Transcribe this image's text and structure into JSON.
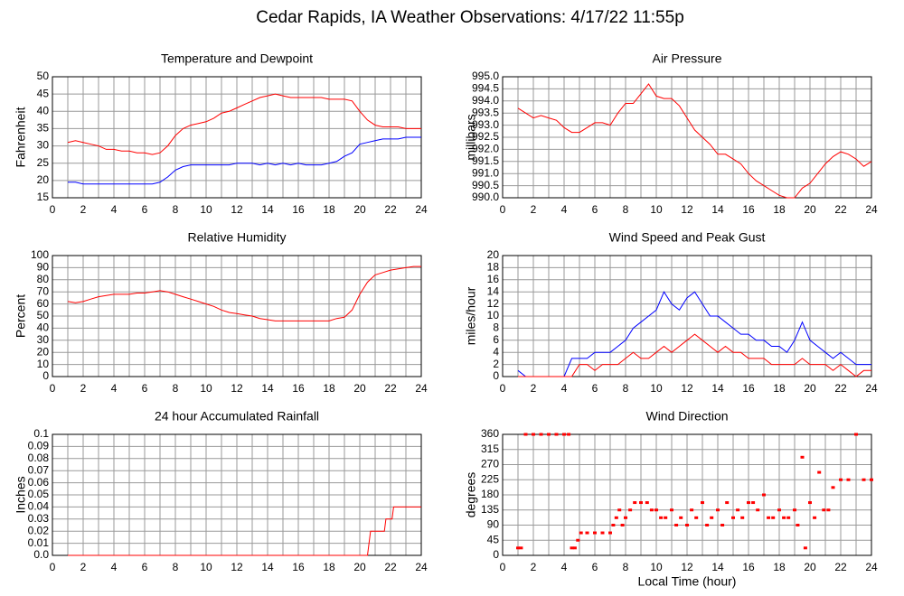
{
  "title": "Cedar Rapids, IA Weather Observations: 4/17/22 11:55p",
  "chart_data": [
    {
      "type": "line",
      "title": "Temperature and Dewpoint",
      "ylabel": "Fahrenheit",
      "xlim": [
        0,
        24
      ],
      "xticks": [
        0,
        2,
        4,
        6,
        8,
        10,
        12,
        14,
        16,
        18,
        20,
        22,
        24
      ],
      "ylim": [
        15,
        50
      ],
      "yticks": [
        15,
        20,
        25,
        30,
        35,
        40,
        45,
        50
      ],
      "grid": true,
      "x": [
        1,
        1.5,
        2,
        2.5,
        3,
        3.5,
        4,
        4.5,
        5,
        5.5,
        6,
        6.5,
        7,
        7.5,
        8,
        8.5,
        9,
        9.5,
        10,
        10.5,
        11,
        11.5,
        12,
        12.5,
        13,
        13.5,
        14,
        14.5,
        15,
        15.5,
        16,
        16.5,
        17,
        17.5,
        18,
        18.5,
        19,
        19.5,
        20,
        20.5,
        21,
        21.5,
        22,
        22.5,
        23,
        23.5,
        24
      ],
      "series": [
        {
          "color": "#ff0000",
          "values": [
            31,
            31.5,
            31,
            30.5,
            30,
            29,
            29,
            28.5,
            28.5,
            28,
            28,
            27.5,
            28,
            30,
            33,
            35,
            36,
            36.5,
            37,
            38,
            39.5,
            40,
            41,
            42,
            43,
            44,
            44.5,
            45,
            44.5,
            44,
            44,
            44,
            44,
            44,
            43.5,
            43.5,
            43.5,
            43,
            40,
            37.5,
            36,
            35.5,
            35.5,
            35.5,
            35,
            35,
            35
          ]
        },
        {
          "color": "#0000ff",
          "values": [
            19.5,
            19.5,
            19,
            19,
            19,
            19,
            19,
            19,
            19,
            19,
            19,
            19,
            19.5,
            21,
            23,
            24,
            24.5,
            24.5,
            24.5,
            24.5,
            24.5,
            24.5,
            25,
            25,
            25,
            24.5,
            25,
            24.5,
            25,
            24.5,
            25,
            24.5,
            24.5,
            24.5,
            25,
            25.5,
            27,
            28,
            30.5,
            31,
            31.5,
            32,
            32,
            32,
            32.5,
            32.5,
            32.5
          ]
        }
      ]
    },
    {
      "type": "line",
      "title": "Air Pressure",
      "ylabel": "millibars",
      "xlim": [
        0,
        24
      ],
      "xticks": [
        0,
        2,
        4,
        6,
        8,
        10,
        12,
        14,
        16,
        18,
        20,
        22,
        24
      ],
      "ylim": [
        990,
        995
      ],
      "yticks": [
        {
          "value": 990,
          "label": "990.0"
        },
        990.5,
        {
          "value": 991,
          "label": "991.0"
        },
        991.5,
        {
          "value": 992,
          "label": "992.0"
        },
        992.5,
        {
          "value": 993,
          "label": "993.0"
        },
        993.5,
        {
          "value": 994,
          "label": "994.0"
        },
        994.5,
        {
          "value": 995,
          "label": "995.0"
        }
      ],
      "grid": true,
      "x": [
        1,
        1.5,
        2,
        2.5,
        3,
        3.5,
        4,
        4.5,
        5,
        5.5,
        6,
        6.5,
        7,
        7.5,
        8,
        8.5,
        9,
        9.5,
        10,
        10.5,
        11,
        11.5,
        12,
        12.5,
        13,
        13.5,
        14,
        14.5,
        15,
        15.5,
        16,
        16.5,
        17,
        17.5,
        18,
        18.5,
        19,
        19.5,
        20,
        20.5,
        21,
        21.5,
        22,
        22.5,
        23,
        23.5,
        24
      ],
      "series": [
        {
          "color": "#ff0000",
          "values": [
            993.7,
            993.5,
            993.3,
            993.4,
            993.3,
            993.2,
            992.9,
            992.7,
            992.7,
            992.9,
            993.1,
            993.1,
            993,
            993.5,
            993.9,
            993.9,
            994.3,
            994.7,
            994.2,
            994.1,
            994.1,
            993.8,
            993.3,
            992.8,
            992.5,
            992.2,
            991.8,
            991.8,
            991.6,
            991.4,
            991,
            990.7,
            990.5,
            990.3,
            990.1,
            990,
            990,
            990.4,
            990.6,
            991,
            991.4,
            991.7,
            991.9,
            991.8,
            991.6,
            991.3,
            991.5
          ]
        }
      ]
    },
    {
      "type": "line",
      "title": "Relative Humidity",
      "ylabel": "Percent",
      "xlim": [
        0,
        24
      ],
      "xticks": [
        0,
        2,
        4,
        6,
        8,
        10,
        12,
        14,
        16,
        18,
        20,
        22,
        24
      ],
      "ylim": [
        0,
        100
      ],
      "yticks": [
        0,
        10,
        20,
        30,
        40,
        50,
        60,
        70,
        80,
        90,
        100
      ],
      "grid": true,
      "x": [
        1,
        1.5,
        2,
        2.5,
        3,
        3.5,
        4,
        4.5,
        5,
        5.5,
        6,
        6.5,
        7,
        7.5,
        8,
        8.5,
        9,
        9.5,
        10,
        10.5,
        11,
        11.5,
        12,
        12.5,
        13,
        13.5,
        14,
        14.5,
        15,
        15.5,
        16,
        16.5,
        17,
        17.5,
        18,
        18.5,
        19,
        19.5,
        20,
        20.5,
        21,
        21.5,
        22,
        22.5,
        23,
        23.5,
        24
      ],
      "series": [
        {
          "color": "#ff0000",
          "values": [
            62,
            61,
            62,
            64,
            66,
            67,
            68,
            68,
            68,
            69,
            69,
            70,
            71,
            70,
            68,
            66,
            64,
            62,
            60,
            58,
            55,
            53,
            52,
            51,
            50,
            48,
            47,
            46,
            46,
            46,
            46,
            46,
            46,
            46,
            46,
            48,
            49,
            55,
            68,
            78,
            84,
            86,
            88,
            89,
            90,
            91,
            91
          ]
        }
      ]
    },
    {
      "type": "line",
      "title": "Wind Speed and Peak Gust",
      "ylabel": "miles/hour",
      "xlim": [
        0,
        24
      ],
      "xticks": [
        0,
        2,
        4,
        6,
        8,
        10,
        12,
        14,
        16,
        18,
        20,
        22,
        24
      ],
      "ylim": [
        0,
        20
      ],
      "yticks": [
        0,
        2,
        4,
        6,
        8,
        10,
        12,
        14,
        16,
        18,
        20
      ],
      "grid": true,
      "x": [
        1,
        1.5,
        2,
        2.5,
        3,
        3.5,
        4,
        4.5,
        5,
        5.5,
        6,
        6.5,
        7,
        7.5,
        8,
        8.5,
        9,
        9.5,
        10,
        10.5,
        11,
        11.5,
        12,
        12.5,
        13,
        13.5,
        14,
        14.5,
        15,
        15.5,
        16,
        16.5,
        17,
        17.5,
        18,
        18.5,
        19,
        19.5,
        20,
        20.5,
        21,
        21.5,
        22,
        22.5,
        23,
        23.5,
        24
      ],
      "series": [
        {
          "color": "#0000ff",
          "values": [
            1,
            0,
            0,
            0,
            0,
            0,
            0,
            3,
            3,
            3,
            4,
            4,
            4,
            5,
            6,
            8,
            9,
            10,
            11,
            14,
            12,
            11,
            13,
            14,
            12,
            10,
            10,
            9,
            8,
            7,
            7,
            6,
            6,
            5,
            5,
            4,
            6,
            9,
            6,
            5,
            4,
            3,
            4,
            3,
            2,
            2,
            2
          ]
        },
        {
          "color": "#ff0000",
          "values": [
            0,
            0,
            0,
            0,
            0,
            0,
            0,
            0,
            2,
            2,
            1,
            2,
            2,
            2,
            3,
            4,
            3,
            3,
            4,
            5,
            4,
            5,
            6,
            7,
            6,
            5,
            4,
            5,
            4,
            4,
            3,
            3,
            3,
            2,
            2,
            2,
            2,
            3,
            2,
            2,
            2,
            1,
            2,
            1,
            0,
            1,
            1
          ]
        }
      ]
    },
    {
      "type": "line",
      "title": "24 hour Accumulated Rainfall",
      "ylabel": "Inches",
      "xlim": [
        0,
        24
      ],
      "xticks": [
        0,
        2,
        4,
        6,
        8,
        10,
        12,
        14,
        16,
        18,
        20,
        22,
        24
      ],
      "ylim": [
        0,
        0.1
      ],
      "yticks": [
        {
          "value": 0,
          "label": "0.0"
        },
        0.01,
        0.02,
        0.03,
        0.04,
        0.05,
        0.06,
        0.07,
        0.08,
        0.09,
        0.1
      ],
      "grid": true,
      "x": [
        1,
        20.5,
        20.7,
        21.6,
        21.7,
        22.1,
        22.2,
        24
      ],
      "series": [
        {
          "color": "#ff0000",
          "values": [
            0,
            0,
            0.02,
            0.02,
            0.03,
            0.03,
            0.04,
            0.04
          ]
        }
      ]
    },
    {
      "type": "scatter",
      "title": "Wind Direction",
      "ylabel": "degrees",
      "xlabel": "Local Time (hour)",
      "xlim": [
        0,
        24
      ],
      "xticks": [
        0,
        2,
        4,
        6,
        8,
        10,
        12,
        14,
        16,
        18,
        20,
        22,
        24
      ],
      "ylim": [
        0,
        360
      ],
      "yticks": [
        0,
        45,
        90,
        135,
        180,
        225,
        270,
        315,
        360
      ],
      "grid": true,
      "x": [
        1,
        1.2,
        1.5,
        2,
        2.5,
        3,
        3.5,
        4,
        4.3,
        4.5,
        4.7,
        4.9,
        5.1,
        5.5,
        6,
        6.5,
        7,
        7.2,
        7.4,
        7.6,
        7.8,
        8,
        8.3,
        8.6,
        9,
        9.4,
        9.7,
        10,
        10.3,
        10.6,
        11,
        11.3,
        11.6,
        12,
        12.3,
        12.6,
        13,
        13.3,
        13.6,
        14,
        14.3,
        14.6,
        15,
        15.3,
        15.6,
        16,
        16.3,
        16.6,
        17,
        17.3,
        17.6,
        18,
        18.3,
        18.6,
        19,
        19.2,
        19.5,
        19.7,
        20,
        20.3,
        20.6,
        20.9,
        21.2,
        21.5,
        22,
        22.5,
        23,
        23.5,
        24
      ],
      "series": [
        {
          "color": "#ff0000",
          "values": [
            22,
            22,
            360,
            360,
            360,
            360,
            360,
            360,
            360,
            22,
            22,
            45,
            67,
            67,
            67,
            67,
            67,
            90,
            112,
            135,
            90,
            112,
            135,
            157,
            157,
            157,
            135,
            135,
            112,
            112,
            135,
            90,
            112,
            90,
            135,
            112,
            157,
            90,
            112,
            135,
            90,
            157,
            112,
            135,
            112,
            157,
            157,
            135,
            180,
            112,
            112,
            135,
            112,
            112,
            135,
            90,
            292,
            22,
            157,
            112,
            247,
            135,
            135,
            202,
            225,
            225,
            360,
            225,
            225
          ]
        }
      ]
    }
  ]
}
